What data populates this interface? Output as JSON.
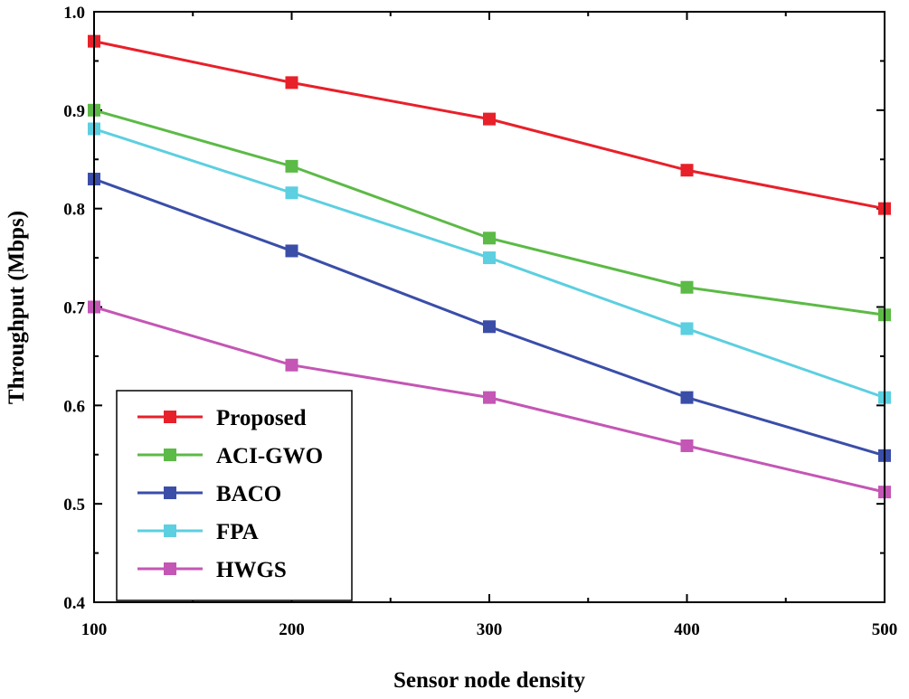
{
  "chart_data": {
    "type": "line",
    "title": "",
    "xlabel": "Sensor node density",
    "ylabel": "Throughput (Mbps)",
    "x": [
      100,
      200,
      300,
      400,
      500
    ],
    "xticks": [
      "100",
      "200",
      "300",
      "400",
      "500"
    ],
    "yticks": [
      "0.4",
      "0.5",
      "0.6",
      "0.7",
      "0.8",
      "0.9",
      "1.0"
    ],
    "xlim": [
      100,
      500
    ],
    "ylim": [
      0.4,
      1.0
    ],
    "grid": false,
    "legend_position": "bottom-left",
    "series": [
      {
        "name": "Proposed",
        "color": "#e8202a",
        "values": [
          0.97,
          0.928,
          0.891,
          0.839,
          0.8
        ]
      },
      {
        "name": "ACI-GWO",
        "color": "#5cba46",
        "values": [
          0.9,
          0.843,
          0.77,
          0.72,
          0.692
        ]
      },
      {
        "name": "BACO",
        "color": "#3a4ea8",
        "values": [
          0.83,
          0.757,
          0.68,
          0.608,
          0.549
        ]
      },
      {
        "name": "FPA",
        "color": "#5ccfe0",
        "values": [
          0.881,
          0.816,
          0.75,
          0.678,
          0.608
        ]
      },
      {
        "name": "HWGS",
        "color": "#c456b5",
        "values": [
          0.7,
          0.641,
          0.608,
          0.559,
          0.512
        ]
      }
    ]
  }
}
